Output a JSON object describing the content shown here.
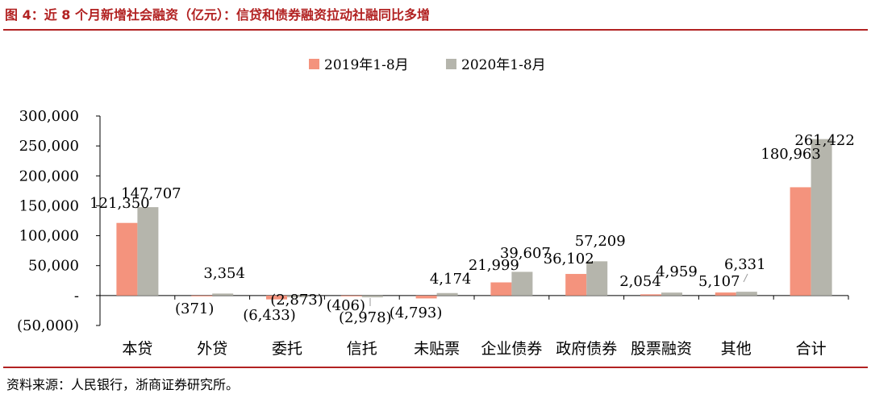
{
  "header": {
    "title": "图 4：近 8 个月新增社会融资（亿元）：信贷和债券融资拉动社融同比多增"
  },
  "footer": {
    "source": "资料来源：人民银行，浙商证券研究所。"
  },
  "colors": {
    "series_2019": "#f4937d",
    "series_2020": "#b5b5ac",
    "accent": "#b22222"
  },
  "chart_data": {
    "type": "bar",
    "title": "近 8 个月新增社会融资（亿元）",
    "xlabel": "",
    "ylabel": "",
    "categories": [
      "本贷",
      "外贷",
      "委托",
      "信托",
      "未贴票",
      "企业债券",
      "政府债券",
      "股票融资",
      "其他",
      "合计"
    ],
    "series": [
      {
        "name": "2019年1-8月",
        "values": [
          121350,
          -371,
          -6433,
          -406,
          -4793,
          21999,
          36102,
          2054,
          5107,
          180963
        ],
        "labels": [
          "121,350",
          "(371)",
          "(6,433)",
          "(406)",
          "(4,793)",
          "21,999",
          "36,102",
          "2,054",
          "5,107",
          "180,963"
        ]
      },
      {
        "name": "2020年1-8月",
        "values": [
          147707,
          3354,
          -2873,
          -2978,
          4174,
          39607,
          57209,
          4959,
          6331,
          261422
        ],
        "labels": [
          "147,707",
          "3,354",
          "(2,873)",
          "(2,978)",
          "4,174",
          "39,607",
          "57,209",
          "4,959",
          "6,331",
          "261,422"
        ]
      }
    ],
    "ylim": [
      -50000,
      300000
    ],
    "yticks": [
      -50000,
      0,
      50000,
      100000,
      150000,
      200000,
      250000,
      300000
    ],
    "ytick_labels": [
      "(50,000)",
      "-",
      "50,000",
      "100,000",
      "150,000",
      "200,000",
      "250,000",
      "300,000"
    ],
    "grid": false,
    "legend": "top-center"
  }
}
